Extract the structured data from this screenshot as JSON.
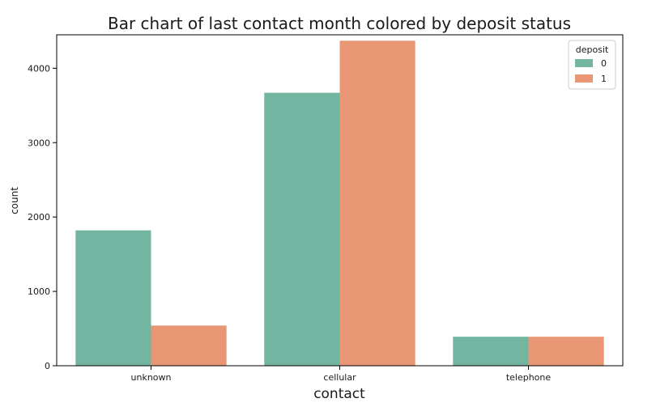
{
  "chart_data": {
    "type": "bar",
    "title": "Bar chart of last contact month colored by deposit status",
    "xlabel": "contact",
    "ylabel": "count",
    "categories": [
      "unknown",
      "cellular",
      "telephone"
    ],
    "series": [
      {
        "name": "0",
        "color": "#72b6a1",
        "values": [
          1820,
          3670,
          390
        ]
      },
      {
        "name": "1",
        "color": "#e99675",
        "values": [
          540,
          4370,
          390
        ]
      }
    ],
    "ylim": [
      0,
      4450
    ],
    "yticks": [
      0,
      1000,
      2000,
      3000,
      4000
    ],
    "legend": {
      "title": "deposit",
      "position": "top-right"
    },
    "grid": false
  }
}
